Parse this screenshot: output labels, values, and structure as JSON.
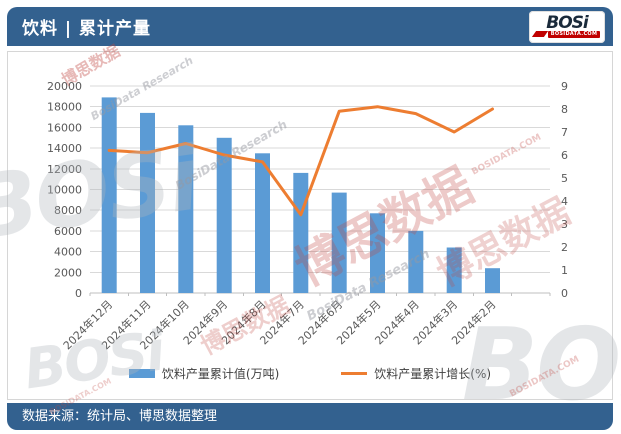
{
  "header": {
    "title": "饮料 | 累计产量",
    "logo": {
      "wordmark": "BOSi",
      "domain": "BOSIDATA.COM"
    }
  },
  "footer": {
    "source_text": "数据来源：统计局、博思数据整理"
  },
  "watermark": {
    "brand_cn": "博思数据",
    "brand_en": "BosiData Research",
    "brand_logo": "BOSi",
    "brand_domain": "BOSIDATA.COM"
  },
  "chart_data": {
    "type": "bar+line",
    "categories": [
      "2024年12月",
      "2024年11月",
      "2024年10月",
      "2024年9月",
      "2024年8月",
      "2024年7月",
      "2024年6月",
      "2024年5月",
      "2024年4月",
      "2024年3月",
      "2024年2月"
    ],
    "series": [
      {
        "name": "饮料产量累计值(万吨)",
        "type": "bar",
        "axis": "left",
        "color": "#5B9BD5",
        "values": [
          18900,
          17400,
          16200,
          15000,
          13500,
          11600,
          9700,
          7700,
          6000,
          4400,
          2400
        ]
      },
      {
        "name": "饮料产量累计增长(%)",
        "type": "line",
        "axis": "right",
        "color": "#ED7D31",
        "values": [
          6.2,
          6.1,
          6.5,
          6.0,
          5.7,
          3.4,
          7.9,
          8.1,
          7.8,
          7.0,
          8.0
        ]
      }
    ],
    "left_axis": {
      "min": 0,
      "max": 20000,
      "step": 2000,
      "ticks": [
        "0",
        "2000",
        "4000",
        "6000",
        "8000",
        "10000",
        "12000",
        "14000",
        "16000",
        "18000",
        "20000"
      ]
    },
    "right_axis": {
      "min": 0,
      "max": 9,
      "step": 1,
      "ticks": [
        "0",
        "1",
        "2",
        "3",
        "4",
        "5",
        "6",
        "7",
        "8",
        "9"
      ]
    },
    "grid": true,
    "legend_position": "bottom",
    "x_label_rotation": -45,
    "empty_right_slot": true
  },
  "colors": {
    "theme_blue": "#33618F",
    "bar_blue": "#5B9BD5",
    "line_orange": "#ED7D31",
    "grid_gray": "#D9D9D9",
    "axis_text": "#595959",
    "logo_red": "#C00000"
  }
}
